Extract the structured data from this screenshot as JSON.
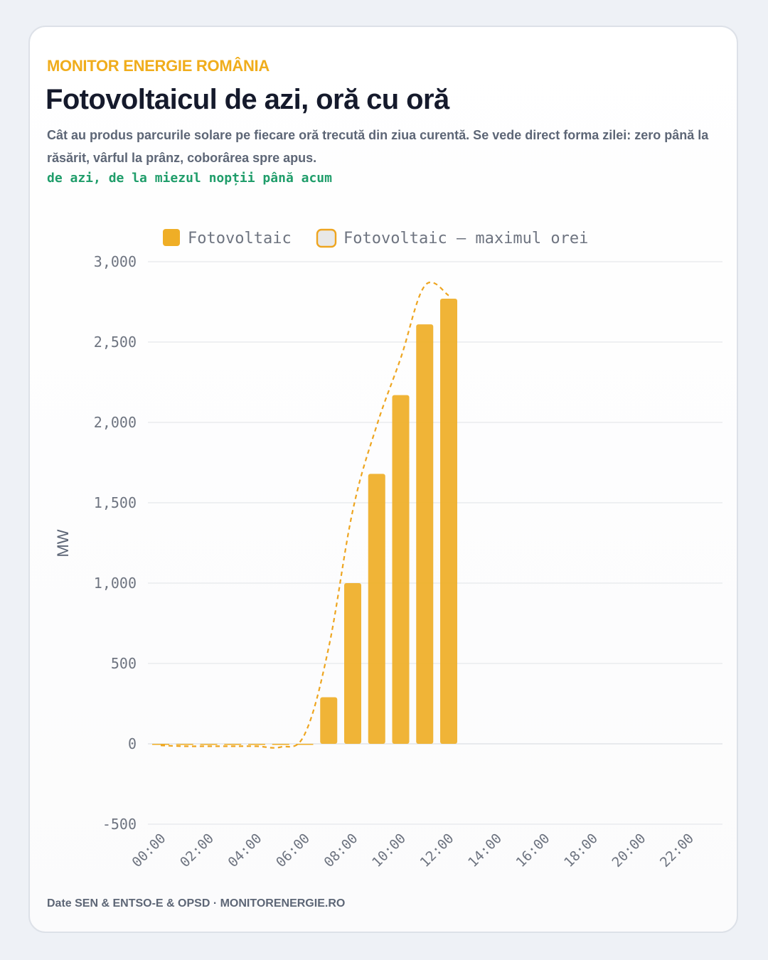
{
  "header": {
    "eyebrow": "MONITOR ENERGIE ROMÂNIA",
    "title": "Fotovoltaicul de azi, oră cu oră",
    "subtitle": "Cât au produs parcurile solare pe fiecare oră trecută din ziua curentă. Se vede direct forma zilei: zero până la răsărit, vârful la prânz, coborârea spre apus.",
    "period": "de azi, de la miezul nopții până acum"
  },
  "footer": {
    "text": "Date SEN & ENTSO-E & OPSD · MONITORENERGIE.RO"
  },
  "colors": {
    "bar": "#efae26",
    "max_line": "#eea520",
    "accent": "#f0ad1c",
    "grid": "#e6e8ec",
    "axis_text": "#6e7480"
  },
  "chart_data": {
    "type": "bar",
    "ylabel": "MW",
    "xlabel": "",
    "ylim": [
      -500,
      3000
    ],
    "yticks": [
      -500,
      0,
      500,
      1000,
      1500,
      2000,
      2500,
      3000
    ],
    "ytick_labels": [
      "-500",
      "0",
      "500",
      "1,000",
      "1,500",
      "2,000",
      "2,500",
      "3,000"
    ],
    "categories": [
      "00:00",
      "01:00",
      "02:00",
      "03:00",
      "04:00",
      "05:00",
      "06:00",
      "07:00",
      "08:00",
      "09:00",
      "10:00",
      "11:00",
      "12:00",
      "13:00",
      "14:00",
      "15:00",
      "16:00",
      "17:00",
      "18:00",
      "19:00",
      "20:00",
      "21:00",
      "22:00",
      "23:00"
    ],
    "xtick_labels": [
      "00:00",
      "02:00",
      "04:00",
      "06:00",
      "08:00",
      "10:00",
      "12:00",
      "14:00",
      "16:00",
      "18:00",
      "20:00",
      "22:00"
    ],
    "legend_position": "top",
    "grid": true,
    "series": [
      {
        "name": "Fotovoltaic",
        "kind": "bar",
        "values": [
          -8,
          -8,
          -8,
          -8,
          -8,
          -8,
          0,
          290,
          1000,
          1680,
          2170,
          2610,
          2770,
          null,
          null,
          null,
          null,
          null,
          null,
          null,
          null,
          null,
          null,
          null
        ]
      },
      {
        "name": "Fotovoltaic — maximul orei",
        "kind": "line-dashed",
        "values": [
          -10,
          -15,
          -15,
          -15,
          -15,
          -20,
          60,
          600,
          1450,
          1980,
          2400,
          2850,
          2790,
          null,
          null,
          null,
          null,
          null,
          null,
          null,
          null,
          null,
          null,
          null
        ]
      }
    ]
  }
}
